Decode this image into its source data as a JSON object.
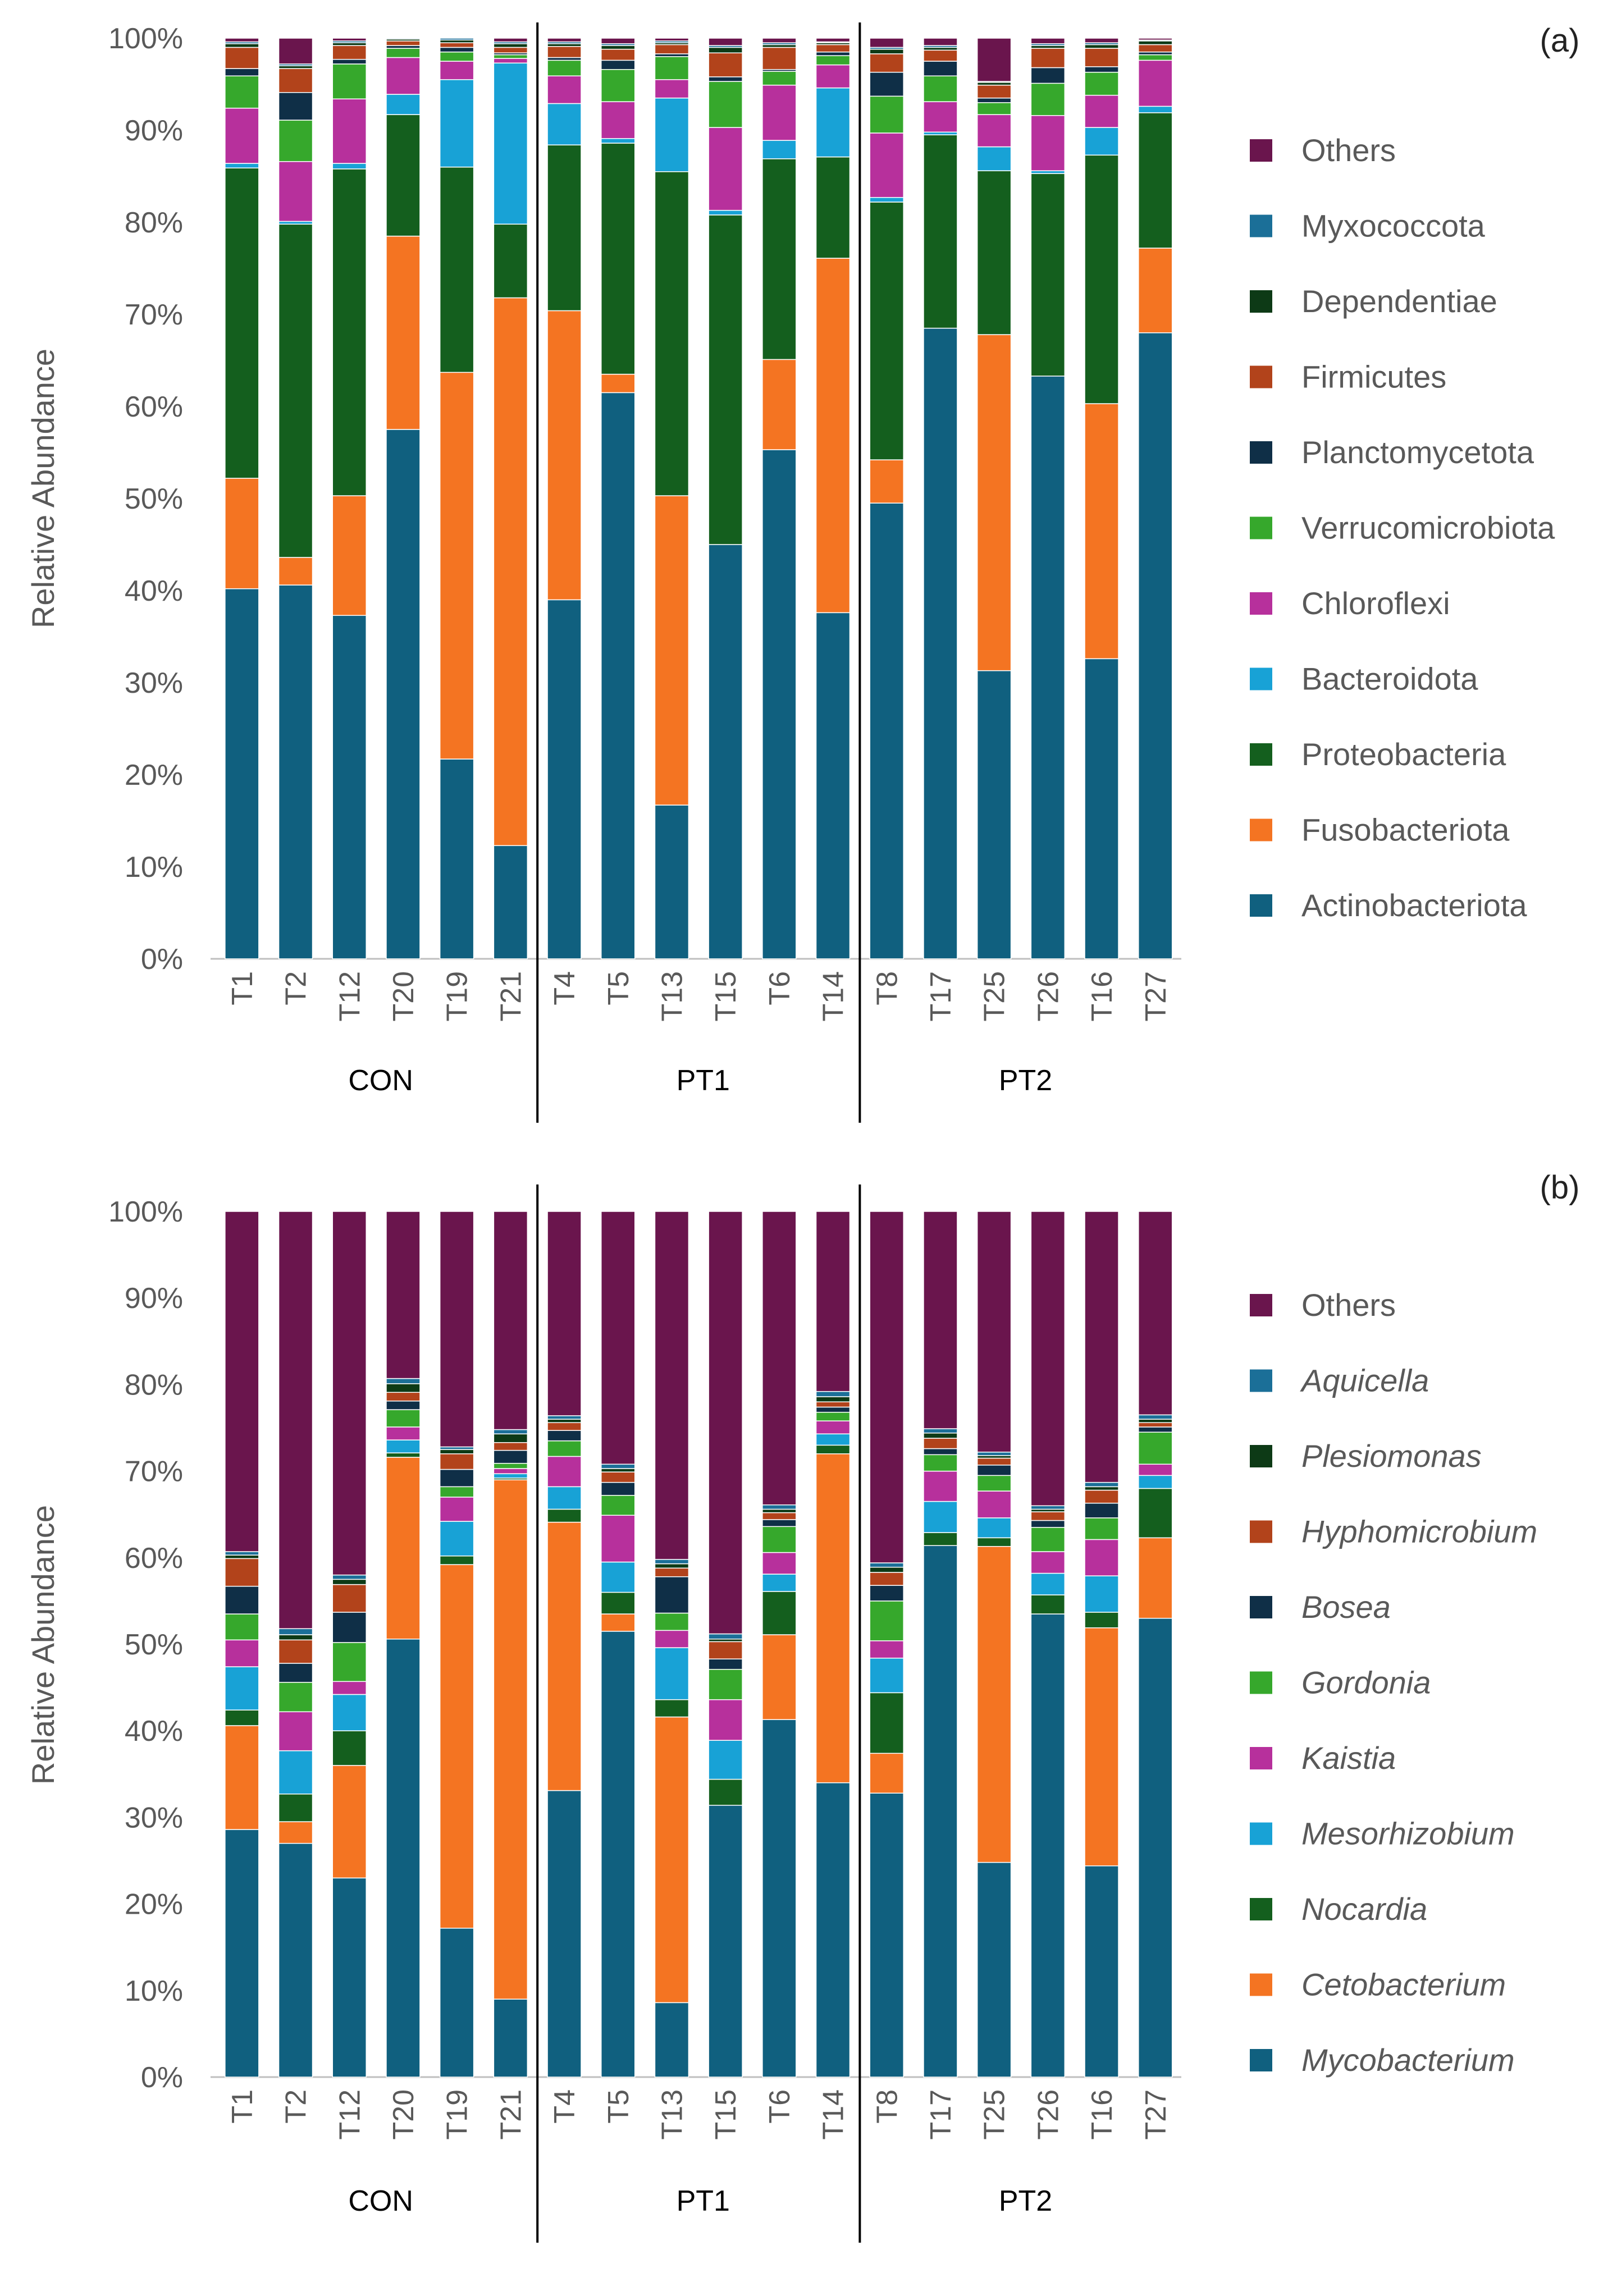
{
  "colors": {
    "Actinobacteriota": "#10607f",
    "Fusobacteriota": "#f47422",
    "Proteobacteria": "#145f1e",
    "Bacteroidota": "#18a2d6",
    "Chloroflexi": "#b7309c",
    "Verrucomicrobiota": "#36a82c",
    "Planctomycetota": "#0f2f47",
    "Firmicutes": "#b2431b",
    "Dependentiae": "#0d3a16",
    "Myxococcota": "#1b6f98",
    "Others_a": "#6a154d",
    "Mycobacterium": "#10607f",
    "Cetobacterium": "#f47422",
    "Nocardia": "#145f1e",
    "Mesorhizobium": "#18a2d6",
    "Kaistia": "#b7309c",
    "Gordonia": "#36a82c",
    "Bosea": "#0f2f47",
    "Hyphomicrobium": "#b2431b",
    "Plesiomonas": "#0d3a16",
    "Aquicella": "#1b6f98",
    "Others_b": "#6a154d"
  },
  "chart_data": [
    {
      "type": "bar",
      "stacked": true,
      "panel_label": "(a)",
      "ylabel": "Relative Abundance",
      "yticks": [
        "0%",
        "10%",
        "20%",
        "30%",
        "40%",
        "50%",
        "60%",
        "70%",
        "80%",
        "90%",
        "100%"
      ],
      "ylim": [
        0,
        100
      ],
      "categories": [
        "T1",
        "T2",
        "T12",
        "T20",
        "T19",
        "T21",
        "T4",
        "T5",
        "T13",
        "T15",
        "T6",
        "T14",
        "T8",
        "T17",
        "T25",
        "T26",
        "T16",
        "T27"
      ],
      "groups": [
        {
          "name": "CON",
          "count": 6
        },
        {
          "name": "PT1",
          "count": 6
        },
        {
          "name": "PT2",
          "count": 6
        }
      ],
      "series": [
        {
          "name": "Actinobacteriota",
          "values": [
            40.2,
            40.6,
            37.3,
            57.5,
            21.7,
            12.3,
            39.0,
            61.5,
            16.7,
            45.0,
            55.3,
            37.6,
            49.5,
            68.5,
            31.3,
            63.3,
            32.6,
            68.0
          ]
        },
        {
          "name": "Fusobacteriota",
          "values": [
            12.0,
            3.0,
            13.0,
            21.0,
            42.0,
            59.5,
            31.4,
            2.0,
            33.6,
            0.0,
            9.8,
            38.5,
            4.7,
            0.0,
            36.5,
            0.0,
            27.7,
            9.2
          ]
        },
        {
          "name": "Proteobacteria",
          "values": [
            33.7,
            36.2,
            35.5,
            13.2,
            22.3,
            8.0,
            18.0,
            25.1,
            35.2,
            35.8,
            21.8,
            11.0,
            28.0,
            21.0,
            17.8,
            22.0,
            27.0,
            14.7
          ]
        },
        {
          "name": "Bacteroidota",
          "values": [
            0.5,
            0.3,
            0.6,
            2.2,
            9.5,
            17.5,
            4.5,
            0.5,
            8.0,
            0.5,
            2.0,
            7.5,
            0.5,
            0.3,
            2.6,
            0.3,
            3.0,
            0.7
          ]
        },
        {
          "name": "Chloroflexi",
          "values": [
            6.0,
            6.5,
            7.0,
            4.0,
            2.0,
            0.5,
            3.0,
            4.0,
            2.0,
            9.0,
            6.0,
            2.5,
            7.0,
            3.3,
            3.5,
            6.0,
            3.5,
            5.0
          ]
        },
        {
          "name": "Verrucomicrobiota",
          "values": [
            3.5,
            4.5,
            3.8,
            1.0,
            1.0,
            0.4,
            1.7,
            3.5,
            2.5,
            5.0,
            1.5,
            1.0,
            4.0,
            2.8,
            1.3,
            3.5,
            2.5,
            0.6
          ]
        },
        {
          "name": "Planctomycetota",
          "values": [
            0.8,
            3.0,
            0.5,
            0.3,
            0.5,
            0.2,
            0.3,
            1.0,
            0.3,
            0.5,
            0.2,
            0.4,
            2.6,
            1.6,
            0.5,
            1.7,
            0.6,
            0.3
          ]
        },
        {
          "name": "Firmicutes",
          "values": [
            2.3,
            2.6,
            1.5,
            0.5,
            0.5,
            0.6,
            1.2,
            1.2,
            1.0,
            2.6,
            2.4,
            0.8,
            2.0,
            1.2,
            1.4,
            2.1,
            2.0,
            0.8
          ]
        },
        {
          "name": "Dependentiae",
          "values": [
            0.4,
            0.3,
            0.3,
            0.2,
            0.3,
            0.4,
            0.3,
            0.4,
            0.2,
            0.6,
            0.3,
            0.2,
            0.5,
            0.3,
            0.3,
            0.3,
            0.4,
            0.4
          ]
        },
        {
          "name": "Myxococcota",
          "values": [
            0.2,
            0.2,
            0.2,
            0.1,
            0.2,
            0.2,
            0.2,
            0.2,
            0.2,
            0.2,
            0.2,
            0.1,
            0.2,
            0.2,
            0.1,
            0.2,
            0.2,
            0.1
          ]
        },
        {
          "name": "Others",
          "color_key": "Others_a",
          "values": [
            0.4,
            2.8,
            0.3,
            0.0,
            0.0,
            0.4,
            0.4,
            0.6,
            0.3,
            0.8,
            0.5,
            0.4,
            1.0,
            0.8,
            4.7,
            0.6,
            0.5,
            0.2
          ]
        }
      ],
      "legend": [
        "Others",
        "Myxococcota",
        "Dependentiae",
        "Firmicutes",
        "Planctomycetota",
        "Verrucomicrobiota",
        "Chloroflexi",
        "Bacteroidota",
        "Proteobacteria",
        "Fusobacteriota",
        "Actinobacteriota"
      ],
      "legend_italic": false
    },
    {
      "type": "bar",
      "stacked": true,
      "panel_label": "(b)",
      "ylabel": "Relative Abundance",
      "yticks": [
        "0%",
        "10%",
        "20%",
        "30%",
        "40%",
        "50%",
        "60%",
        "70%",
        "80%",
        "90%",
        "100%"
      ],
      "ylim": [
        0,
        100
      ],
      "categories": [
        "T1",
        "T2",
        "T12",
        "T20",
        "T19",
        "T21",
        "T4",
        "T5",
        "T13",
        "T15",
        "T6",
        "T14",
        "T8",
        "T17",
        "T25",
        "T26",
        "T16",
        "T27"
      ],
      "groups": [
        {
          "name": "CON",
          "count": 6
        },
        {
          "name": "PT1",
          "count": 6
        },
        {
          "name": "PT2",
          "count": 6
        }
      ],
      "series": [
        {
          "name": "Mycobacterium",
          "values": [
            28.6,
            27.0,
            23.0,
            50.6,
            17.2,
            9.0,
            33.1,
            51.5,
            8.6,
            31.4,
            41.3,
            34.0,
            32.8,
            61.4,
            24.8,
            53.5,
            24.4,
            53.0
          ]
        },
        {
          "name": "Cetobacterium",
          "values": [
            12.0,
            2.5,
            13.0,
            21.0,
            42.0,
            60.0,
            31.0,
            2.0,
            33.0,
            0.0,
            9.8,
            38.0,
            4.6,
            0.0,
            36.5,
            0.0,
            27.5,
            9.3
          ]
        },
        {
          "name": "Nocardia",
          "values": [
            1.8,
            3.2,
            4.0,
            0.5,
            1.0,
            0.2,
            1.5,
            2.5,
            2.0,
            3.0,
            5.0,
            1.0,
            7.0,
            1.5,
            1.0,
            2.2,
            1.8,
            5.7
          ]
        },
        {
          "name": "Mesorhizobium",
          "values": [
            5.0,
            5.0,
            4.2,
            1.5,
            4.0,
            0.5,
            2.6,
            3.5,
            6.0,
            4.5,
            2.0,
            1.3,
            4.0,
            3.6,
            2.3,
            2.5,
            4.2,
            1.5
          ]
        },
        {
          "name": "Kaistia",
          "values": [
            3.1,
            4.5,
            1.5,
            1.5,
            2.8,
            0.6,
            3.5,
            5.4,
            2.0,
            4.7,
            2.5,
            1.5,
            2.0,
            3.5,
            3.1,
            2.5,
            4.2,
            1.3
          ]
        },
        {
          "name": "Gordonia",
          "values": [
            3.0,
            3.4,
            4.5,
            2.0,
            1.2,
            0.6,
            1.8,
            2.3,
            2.0,
            3.5,
            3.0,
            1.0,
            4.6,
            1.9,
            1.8,
            2.8,
            2.5,
            3.7
          ]
        },
        {
          "name": "Bosea",
          "values": [
            3.2,
            2.2,
            3.5,
            1.0,
            2.0,
            1.5,
            1.2,
            1.5,
            4.2,
            1.2,
            0.8,
            0.6,
            1.8,
            0.7,
            1.2,
            0.8,
            1.7,
            0.6
          ]
        },
        {
          "name": "Hyphomicrobium",
          "values": [
            3.2,
            2.7,
            3.2,
            1.0,
            1.8,
            0.9,
            0.9,
            1.2,
            1.0,
            2.0,
            0.8,
            0.6,
            1.5,
            1.2,
            0.8,
            1.0,
            1.5,
            0.5
          ]
        },
        {
          "name": "Plesiomonas",
          "values": [
            0.4,
            0.6,
            0.6,
            1.0,
            0.5,
            1.0,
            0.4,
            0.4,
            0.5,
            0.3,
            0.4,
            0.6,
            0.6,
            0.6,
            0.3,
            0.3,
            0.4,
            0.4
          ]
        },
        {
          "name": "Aquicella",
          "values": [
            0.4,
            0.7,
            0.5,
            0.6,
            0.3,
            0.5,
            0.4,
            0.5,
            0.5,
            0.6,
            0.5,
            0.6,
            0.5,
            0.5,
            0.4,
            0.4,
            0.5,
            0.5
          ]
        },
        {
          "name": "Others",
          "color_key": "Others_b",
          "values": [
            39.3,
            48.2,
            42.0,
            19.3,
            27.2,
            25.2,
            23.6,
            29.2,
            40.2,
            48.8,
            33.9,
            20.8,
            40.6,
            25.1,
            27.8,
            34.0,
            31.3,
            23.5
          ]
        }
      ],
      "legend": [
        "Others",
        "Aquicella",
        "Plesiomonas",
        "Hyphomicrobium",
        "Bosea",
        "Gordonia",
        "Kaistia",
        "Mesorhizobium",
        "Nocardia",
        "Cetobacterium",
        "Mycobacterium"
      ],
      "legend_italic": true
    }
  ]
}
